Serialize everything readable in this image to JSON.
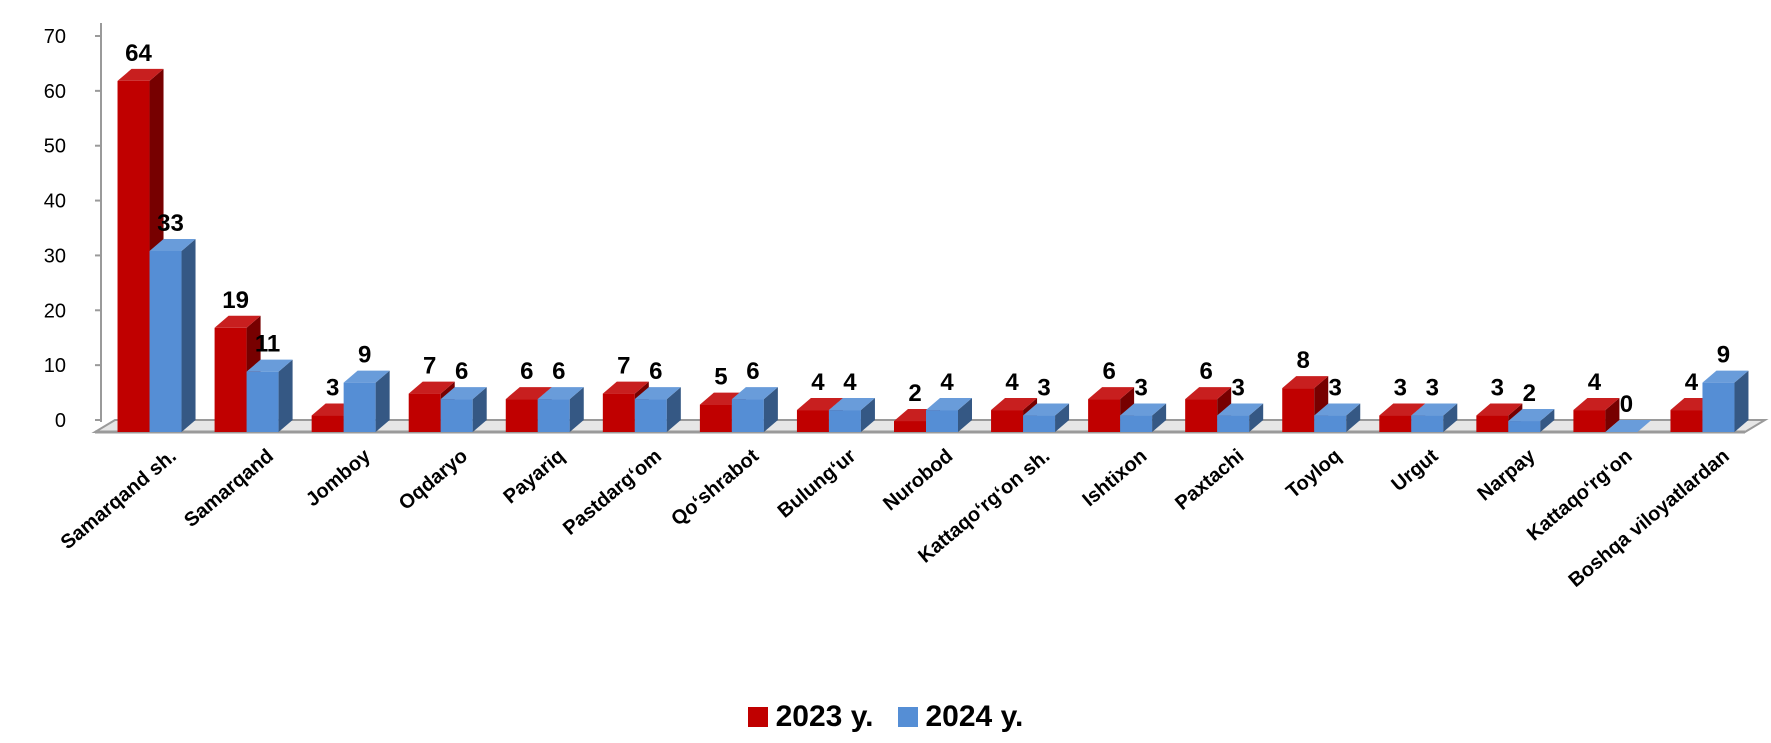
{
  "chart_data": {
    "type": "bar",
    "categories": [
      "Samarqand sh.",
      "Samarqand",
      "Jomboy",
      "Oqdaryo",
      "Payariq",
      "Pastdarg‘om",
      "Qo‘shrabot",
      "Bulung‘ur",
      "Nurobod",
      "Kattaqo‘rg‘on sh.",
      "Ishtixon",
      "Paxtachi",
      "Toyloq",
      "Urgut",
      "Narpay",
      "Kattaqo‘rg‘on",
      "Boshqa viloyatlardan"
    ],
    "series": [
      {
        "name": "2023 y.",
        "color": "#c00000",
        "values": [
          64,
          19,
          3,
          7,
          6,
          7,
          5,
          4,
          2,
          4,
          6,
          6,
          8,
          3,
          3,
          4,
          4
        ]
      },
      {
        "name": "2024 y.",
        "color": "#558ed5",
        "values": [
          33,
          11,
          9,
          6,
          6,
          6,
          6,
          4,
          4,
          3,
          3,
          3,
          3,
          3,
          2,
          0,
          9
        ]
      }
    ],
    "yticks": [
      0,
      10,
      20,
      30,
      40,
      50,
      60,
      70
    ],
    "ylim": [
      0,
      70
    ],
    "grid": false,
    "legend_position": "bottom",
    "data_labels": true,
    "style": "3d-clustered-column"
  }
}
